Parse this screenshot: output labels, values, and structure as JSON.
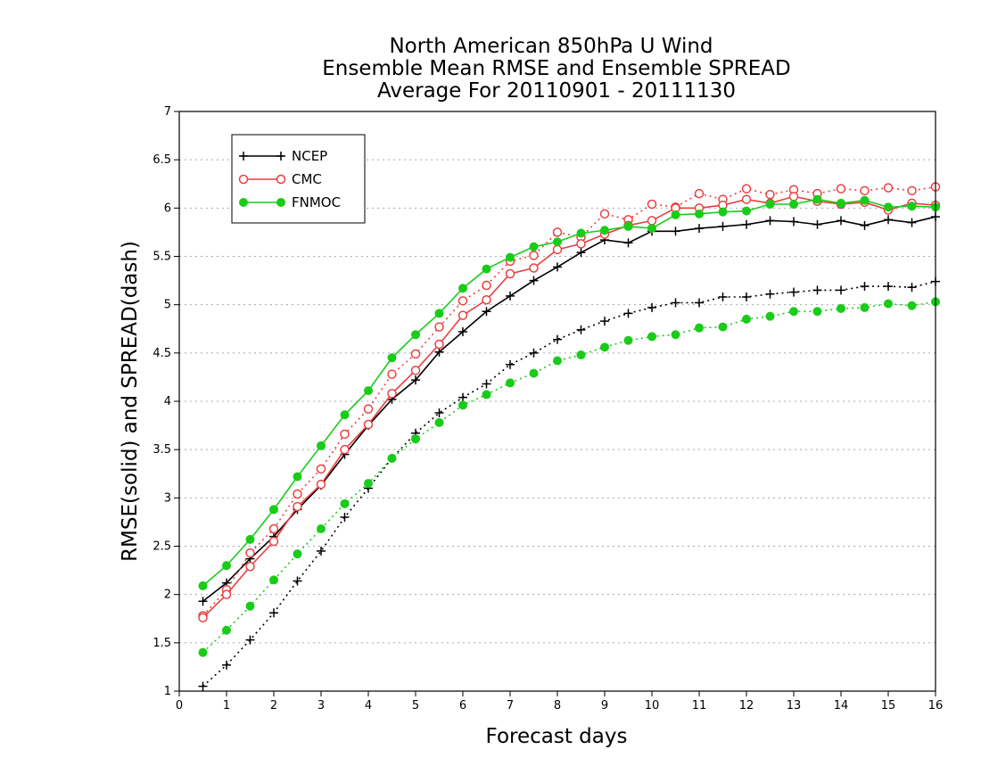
{
  "colors": {
    "NCEP": "#000000",
    "CMC": "#e8403f",
    "FNMOC": "#19cc19",
    "grid": "#a8a8a8"
  },
  "chart_data": {
    "type": "line",
    "title": [
      "North American 850hPa U Wind",
      "Ensemble Mean RMSE and Ensemble SPREAD",
      "Average For 20110901 - 20111130"
    ],
    "xlabel": "Forecast days",
    "ylabel": "RMSE(solid) and SPREAD(dash)",
    "xlim": [
      0,
      16
    ],
    "ylim": [
      1,
      7
    ],
    "x_ticks": [
      "0",
      "1",
      "2",
      "3",
      "4",
      "5",
      "6",
      "7",
      "8",
      "9",
      "10",
      "11",
      "12",
      "13",
      "14",
      "15",
      "16"
    ],
    "y_ticks": [
      "1",
      "1.5",
      "2",
      "2.5",
      "3",
      "3.5",
      "4",
      "4.5",
      "5",
      "5.5",
      "6",
      "6.5",
      "7"
    ],
    "grid": "horizontal dotted",
    "legend_position": "top-left",
    "x": [
      0.5,
      1,
      1.5,
      2,
      2.5,
      3,
      3.5,
      4,
      4.5,
      5,
      5.5,
      6,
      6.5,
      7,
      7.5,
      8,
      8.5,
      9,
      9.5,
      10,
      10.5,
      11,
      11.5,
      12,
      12.5,
      13,
      13.5,
      14,
      14.5,
      15,
      15.5,
      16
    ],
    "series": [
      {
        "name": "NCEP",
        "marker": "plus",
        "rmse": [
          1.93,
          2.12,
          2.37,
          2.6,
          2.88,
          3.13,
          3.45,
          3.75,
          4.02,
          4.22,
          4.51,
          4.72,
          4.93,
          5.09,
          5.25,
          5.39,
          5.54,
          5.67,
          5.64,
          5.76,
          5.76,
          5.79,
          5.81,
          5.83,
          5.87,
          5.86,
          5.83,
          5.87,
          5.82,
          5.88,
          5.85,
          5.91
        ],
        "spread": [
          1.05,
          1.27,
          1.53,
          1.81,
          2.14,
          2.45,
          2.8,
          3.1,
          3.41,
          3.67,
          3.88,
          4.04,
          4.18,
          4.38,
          4.5,
          4.64,
          4.74,
          4.83,
          4.91,
          4.97,
          5.02,
          5.02,
          5.08,
          5.08,
          5.11,
          5.13,
          5.15,
          5.15,
          5.19,
          5.19,
          5.18,
          5.24
        ]
      },
      {
        "name": "CMC",
        "marker": "open-circle",
        "rmse": [
          1.76,
          2.0,
          2.29,
          2.55,
          2.91,
          3.14,
          3.5,
          3.76,
          4.08,
          4.32,
          4.59,
          4.89,
          5.05,
          5.32,
          5.38,
          5.57,
          5.63,
          5.73,
          5.82,
          5.87,
          6.0,
          6.0,
          6.03,
          6.09,
          6.05,
          6.12,
          6.07,
          6.04,
          6.06,
          5.98,
          6.05,
          6.03
        ],
        "spread": [
          1.78,
          2.05,
          2.43,
          2.68,
          3.04,
          3.3,
          3.66,
          3.92,
          4.28,
          4.49,
          4.77,
          5.04,
          5.2,
          5.45,
          5.51,
          5.75,
          5.7,
          5.94,
          5.88,
          6.04,
          6.01,
          6.15,
          6.09,
          6.2,
          6.14,
          6.19,
          6.15,
          6.2,
          6.18,
          6.21,
          6.18,
          6.22
        ]
      },
      {
        "name": "FNMOC",
        "marker": "filled-circle",
        "rmse": [
          2.09,
          2.3,
          2.57,
          2.88,
          3.22,
          3.54,
          3.86,
          4.11,
          4.45,
          4.69,
          4.91,
          5.17,
          5.37,
          5.49,
          5.6,
          5.65,
          5.74,
          5.77,
          5.81,
          5.79,
          5.93,
          5.94,
          5.96,
          5.97,
          6.04,
          6.04,
          6.09,
          6.05,
          6.08,
          6.01,
          6.02,
          6.01
        ],
        "spread": [
          1.4,
          1.63,
          1.88,
          2.15,
          2.42,
          2.68,
          2.94,
          3.15,
          3.41,
          3.61,
          3.78,
          3.96,
          4.07,
          4.19,
          4.29,
          4.42,
          4.48,
          4.56,
          4.63,
          4.67,
          4.69,
          4.76,
          4.77,
          4.85,
          4.88,
          4.93,
          4.93,
          4.96,
          4.97,
          5.01,
          4.99,
          5.03
        ]
      }
    ]
  }
}
